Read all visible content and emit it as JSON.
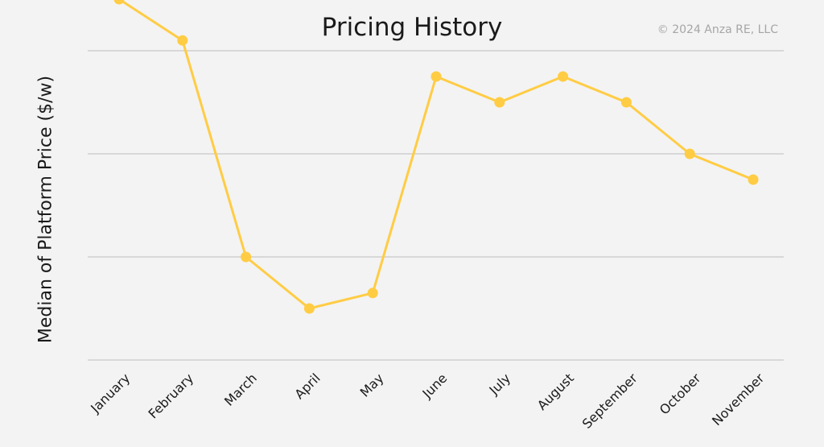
{
  "header": {
    "copyright": "© 2024 Anza RE, LLC"
  },
  "colors": {
    "series": "#ffcc44",
    "grid": "#c8c8c8",
    "background": "#f3f3f3"
  },
  "chart_data": {
    "type": "line",
    "title": "Pricing History",
    "xlabel": "",
    "ylabel": "Median of Platform Price ($/w)",
    "categories": [
      "January",
      "February",
      "March",
      "April",
      "May",
      "June",
      "July",
      "August",
      "September",
      "October",
      "November"
    ],
    "series": [
      {
        "values": [
          3.5,
          3.1,
          1.0,
          0.5,
          0.65,
          2.75,
          2.5,
          2.75,
          2.5,
          2.0,
          1.75
        ]
      }
    ],
    "ylim": [
      0,
      3.0
    ],
    "yticks": [
      0,
      1,
      2,
      3
    ],
    "ytick_labels_visible": false,
    "grid": true,
    "legend": "none"
  }
}
